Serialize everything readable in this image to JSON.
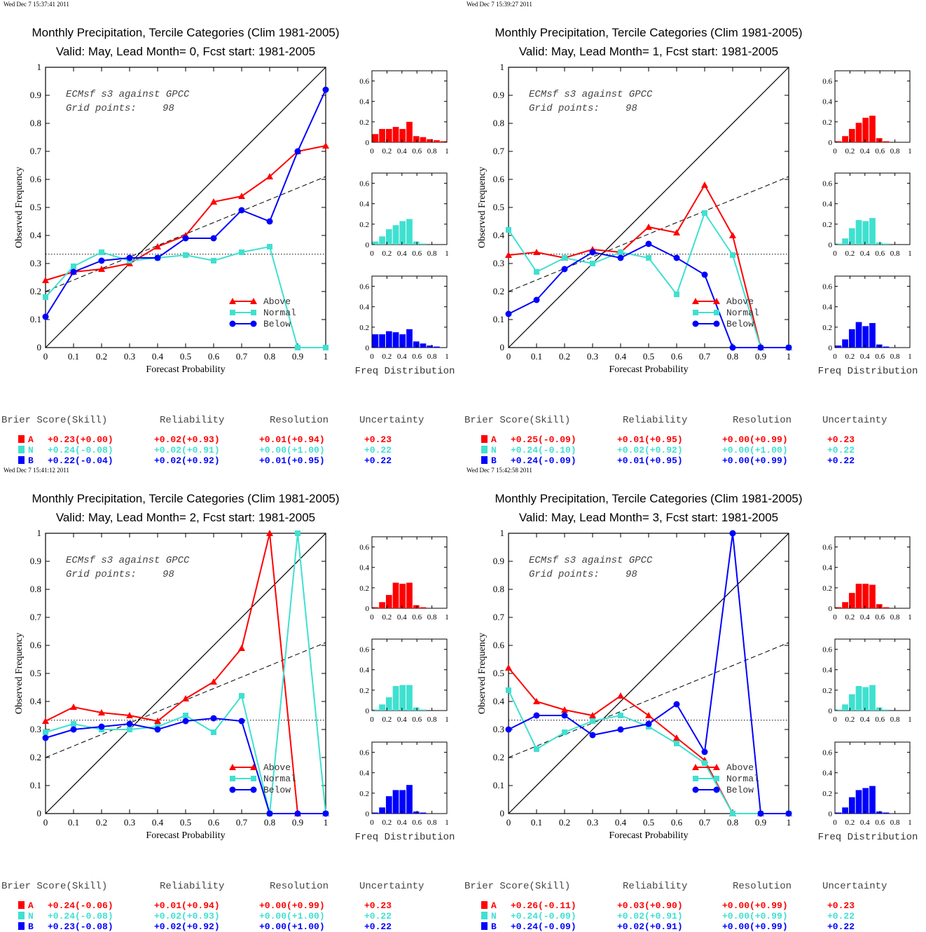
{
  "colors": {
    "above": "#ff0000",
    "normal": "#40e0d0",
    "below": "#0000ff",
    "axis": "#000000"
  },
  "common": {
    "legend": [
      "Above",
      "Normal",
      "Below"
    ],
    "inset_text_1": "ECMsf s3 against GPCC",
    "inset_text_2": "Grid points:",
    "grid_points": "98",
    "xlabel": "Forecast Probability",
    "ylabel": "Observed Frequency",
    "freq_label": "Freq Distribution",
    "score_headers": [
      "Brier Score(Skill)",
      "Reliability",
      "Resolution",
      "Uncertainty"
    ],
    "score_letters": [
      "A",
      "N",
      "B"
    ],
    "x_ticks": [
      "0",
      "0.1",
      "0.2",
      "0.3",
      "0.4",
      "0.5",
      "0.6",
      "0.7",
      "0.8",
      "0.9",
      "1"
    ],
    "y_ticks": [
      "0",
      "0.1",
      "0.2",
      "0.3",
      "0.4",
      "0.5",
      "0.6",
      "0.7",
      "0.8",
      "0.9",
      "1"
    ],
    "hist_x_ticks": [
      "0",
      "0.2",
      "0.4",
      "0.6",
      "0.8",
      "1"
    ],
    "hist_y_ticks": [
      "0",
      "0.2",
      "0.4",
      "0.6"
    ]
  },
  "chart_data": [
    {
      "type": "line",
      "timestamp": "Wed Dec  7 15:37:41 2011",
      "title": "Monthly Precipitation, Tercile Categories (Clim 1981-2005)",
      "subtitle": "Valid: May, Lead Month= 0, Fcst start: 1981-2005",
      "xlim": [
        0,
        1
      ],
      "ylim": [
        0,
        1
      ],
      "x": [
        0,
        0.1,
        0.2,
        0.3,
        0.4,
        0.5,
        0.6,
        0.7,
        0.8,
        0.9,
        1
      ],
      "series": [
        {
          "name": "Above",
          "values": [
            0.24,
            0.27,
            0.28,
            0.3,
            0.36,
            0.4,
            0.52,
            0.54,
            0.61,
            0.7,
            0.72
          ]
        },
        {
          "name": "Normal",
          "values": [
            0.18,
            0.29,
            0.34,
            0.31,
            0.32,
            0.33,
            0.31,
            0.34,
            0.36,
            0.0,
            0.0
          ]
        },
        {
          "name": "Below",
          "values": [
            0.11,
            0.27,
            0.31,
            0.32,
            0.32,
            0.39,
            0.39,
            0.49,
            0.45,
            0.7,
            0.92
          ]
        }
      ],
      "climatology_line": 0.333,
      "regression_line": [
        0.2,
        0.61
      ],
      "histograms": [
        [
          0.08,
          0.13,
          0.13,
          0.15,
          0.13,
          0.2,
          0.06,
          0.05,
          0.03,
          0.02,
          0.01
        ],
        [
          0.03,
          0.08,
          0.15,
          0.19,
          0.23,
          0.25,
          0.03,
          0.01,
          0,
          0,
          0
        ],
        [
          0.13,
          0.13,
          0.16,
          0.15,
          0.13,
          0.18,
          0.06,
          0.04,
          0.02,
          0.01,
          0
        ]
      ],
      "scores": [
        [
          "+0.23(+0.00)",
          "+0.02(+0.93)",
          "+0.01(+0.94)",
          "+0.23"
        ],
        [
          "+0.24(-0.08)",
          "+0.02(+0.91)",
          "+0.00(+1.00)",
          "+0.22"
        ],
        [
          "+0.22(-0.04)",
          "+0.02(+0.92)",
          "+0.01(+0.95)",
          "+0.22"
        ]
      ]
    },
    {
      "type": "line",
      "timestamp": "Wed Dec  7 15:39:27 2011",
      "title": "Monthly Precipitation, Tercile Categories (Clim 1981-2005)",
      "subtitle": "Valid: May, Lead Month= 1, Fcst start: 1981-2005",
      "xlim": [
        0,
        1
      ],
      "ylim": [
        0,
        1
      ],
      "x": [
        0,
        0.1,
        0.2,
        0.3,
        0.4,
        0.5,
        0.6,
        0.7,
        0.8,
        0.9,
        1
      ],
      "series": [
        {
          "name": "Above",
          "values": [
            0.33,
            0.34,
            0.32,
            0.35,
            0.34,
            0.43,
            0.41,
            0.58,
            0.4,
            0.0,
            0.0
          ]
        },
        {
          "name": "Normal",
          "values": [
            0.42,
            0.27,
            0.32,
            0.3,
            0.34,
            0.32,
            0.19,
            0.48,
            0.33,
            0.0,
            0.0
          ]
        },
        {
          "name": "Below",
          "values": [
            0.12,
            0.17,
            0.28,
            0.34,
            0.32,
            0.37,
            0.32,
            0.26,
            0.0,
            0.0,
            0.0
          ]
        }
      ],
      "climatology_line": 0.333,
      "regression_line": [
        0.2,
        0.61
      ],
      "histograms": [
        [
          0.01,
          0.06,
          0.13,
          0.19,
          0.24,
          0.26,
          0.04,
          0.01,
          0,
          0,
          0
        ],
        [
          0.01,
          0.06,
          0.16,
          0.24,
          0.23,
          0.26,
          0.02,
          0.01,
          0,
          0,
          0
        ],
        [
          0.02,
          0.08,
          0.18,
          0.25,
          0.21,
          0.24,
          0.03,
          0.01,
          0,
          0,
          0
        ]
      ],
      "scores": [
        [
          "+0.25(-0.09)",
          "+0.01(+0.95)",
          "+0.00(+0.99)",
          "+0.23"
        ],
        [
          "+0.24(-0.10)",
          "+0.02(+0.92)",
          "+0.00(+1.00)",
          "+0.22"
        ],
        [
          "+0.24(-0.09)",
          "+0.01(+0.95)",
          "+0.00(+0.99)",
          "+0.22"
        ]
      ]
    },
    {
      "type": "line",
      "timestamp": "Wed Dec  7 15:41:12 2011",
      "title": "Monthly Precipitation, Tercile Categories (Clim 1981-2005)",
      "subtitle": "Valid: May, Lead Month= 2, Fcst start: 1981-2005",
      "xlim": [
        0,
        1
      ],
      "ylim": [
        0,
        1
      ],
      "x": [
        0,
        0.1,
        0.2,
        0.3,
        0.4,
        0.5,
        0.6,
        0.7,
        0.8,
        0.9,
        1
      ],
      "series": [
        {
          "name": "Above",
          "values": [
            0.33,
            0.38,
            0.36,
            0.35,
            0.33,
            0.41,
            0.47,
            0.59,
            1.0,
            0.0,
            0.0
          ]
        },
        {
          "name": "Normal",
          "values": [
            0.29,
            0.32,
            0.3,
            0.3,
            0.31,
            0.35,
            0.29,
            0.42,
            0.0,
            1.0,
            0.0
          ]
        },
        {
          "name": "Below",
          "values": [
            0.27,
            0.3,
            0.31,
            0.32,
            0.3,
            0.33,
            0.34,
            0.33,
            0.0,
            0.0,
            0.0
          ]
        }
      ],
      "climatology_line": 0.333,
      "regression_line": [
        0.2,
        0.61
      ],
      "histograms": [
        [
          0.01,
          0.06,
          0.13,
          0.25,
          0.24,
          0.25,
          0.03,
          0.01,
          0,
          0,
          0
        ],
        [
          0.01,
          0.06,
          0.13,
          0.24,
          0.25,
          0.25,
          0.03,
          0.01,
          0,
          0,
          0
        ],
        [
          0.01,
          0.06,
          0.17,
          0.23,
          0.23,
          0.28,
          0.02,
          0.01,
          0,
          0,
          0
        ]
      ],
      "scores": [
        [
          "+0.24(-0.06)",
          "+0.01(+0.94)",
          "+0.00(+0.99)",
          "+0.23"
        ],
        [
          "+0.24(-0.08)",
          "+0.02(+0.93)",
          "+0.00(+1.00)",
          "+0.22"
        ],
        [
          "+0.23(-0.08)",
          "+0.02(+0.92)",
          "+0.00(+1.00)",
          "+0.22"
        ]
      ]
    },
    {
      "type": "line",
      "timestamp": "Wed Dec  7 15:42:58 2011",
      "title": "Monthly Precipitation, Tercile Categories (Clim 1981-2005)",
      "subtitle": "Valid: May, Lead Month= 3, Fcst start: 1981-2005",
      "xlim": [
        0,
        1
      ],
      "ylim": [
        0,
        1
      ],
      "x": [
        0,
        0.1,
        0.2,
        0.3,
        0.4,
        0.5,
        0.6,
        0.7,
        0.8,
        0.9,
        1
      ],
      "series": [
        {
          "name": "Above",
          "values": [
            0.52,
            0.4,
            0.37,
            0.35,
            0.42,
            0.35,
            0.27,
            0.19,
            0.0,
            0.0,
            0.0
          ]
        },
        {
          "name": "Normal",
          "values": [
            0.44,
            0.23,
            0.29,
            0.33,
            0.35,
            0.31,
            0.25,
            0.18,
            0.0,
            0.0,
            0.0
          ]
        },
        {
          "name": "Below",
          "values": [
            0.3,
            0.35,
            0.35,
            0.28,
            0.3,
            0.32,
            0.39,
            0.22,
            1.0,
            0.0,
            0.0
          ]
        }
      ],
      "climatology_line": 0.333,
      "regression_line": [
        0.2,
        0.61
      ],
      "histograms": [
        [
          0.01,
          0.06,
          0.15,
          0.24,
          0.24,
          0.23,
          0.04,
          0.01,
          0,
          0,
          0
        ],
        [
          0.01,
          0.06,
          0.16,
          0.24,
          0.23,
          0.25,
          0.03,
          0.01,
          0,
          0,
          0
        ],
        [
          0.01,
          0.06,
          0.16,
          0.23,
          0.25,
          0.27,
          0.02,
          0.01,
          0,
          0,
          0
        ]
      ],
      "scores": [
        [
          "+0.26(-0.11)",
          "+0.03(+0.90)",
          "+0.00(+0.99)",
          "+0.23"
        ],
        [
          "+0.24(-0.09)",
          "+0.02(+0.91)",
          "+0.00(+0.99)",
          "+0.22"
        ],
        [
          "+0.24(-0.09)",
          "+0.02(+0.91)",
          "+0.00(+0.99)",
          "+0.22"
        ]
      ]
    }
  ]
}
